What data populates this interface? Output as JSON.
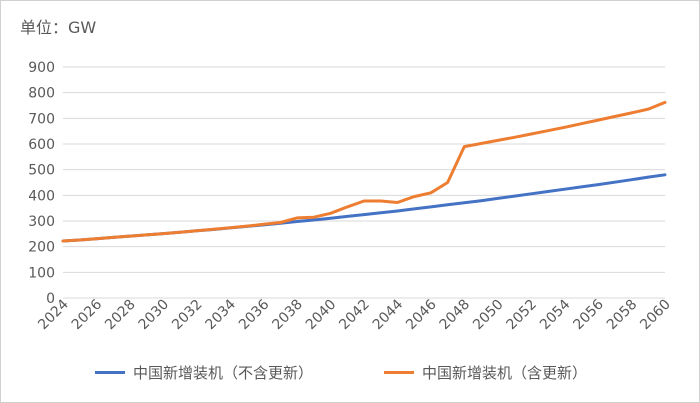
{
  "unit_label": "单位：GW",
  "colors": {
    "series_1": "#4472C4",
    "series_2": "#ED7D31",
    "grid": "#d9d9d9",
    "text": "#595959"
  },
  "chart_data": {
    "type": "line",
    "title": "",
    "xlabel": "",
    "ylabel": "",
    "ylim": [
      0,
      900
    ],
    "y_ticks": [
      "0",
      "100",
      "200",
      "300",
      "400",
      "500",
      "600",
      "700",
      "800",
      "900"
    ],
    "x_ticks": [
      "2024",
      "2026",
      "2028",
      "2030",
      "2032",
      "2034",
      "2036",
      "2038",
      "2040",
      "2042",
      "2044",
      "2046",
      "2048",
      "2050",
      "2052",
      "2054",
      "2056",
      "2058",
      "2060"
    ],
    "x": [
      2024,
      2025,
      2026,
      2027,
      2028,
      2029,
      2030,
      2031,
      2032,
      2033,
      2034,
      2035,
      2036,
      2037,
      2038,
      2039,
      2040,
      2041,
      2042,
      2043,
      2044,
      2045,
      2046,
      2047,
      2048,
      2049,
      2050,
      2051,
      2052,
      2053,
      2054,
      2055,
      2056,
      2057,
      2058,
      2059,
      2060
    ],
    "grid": true,
    "legend_position": "bottom",
    "series": [
      {
        "name": "中国新增装机（不含更新）",
        "values": [
          222,
          226,
          231,
          236,
          241,
          246,
          251,
          256,
          262,
          267,
          273,
          279,
          285,
          291,
          298,
          304,
          311,
          318,
          325,
          332,
          339,
          347,
          355,
          363,
          371,
          379,
          388,
          397,
          406,
          415,
          424,
          433,
          442,
          451,
          461,
          471,
          480
        ]
      },
      {
        "name": "中国新增装机（含更新）",
        "values": [
          222,
          226,
          231,
          236,
          241,
          246,
          251,
          256,
          262,
          268,
          274,
          280,
          287,
          294,
          312,
          315,
          330,
          355,
          378,
          378,
          372,
          395,
          410,
          450,
          590,
          602,
          614,
          626,
          639,
          652,
          665,
          679,
          693,
          707,
          721,
          736,
          762
        ]
      }
    ]
  }
}
